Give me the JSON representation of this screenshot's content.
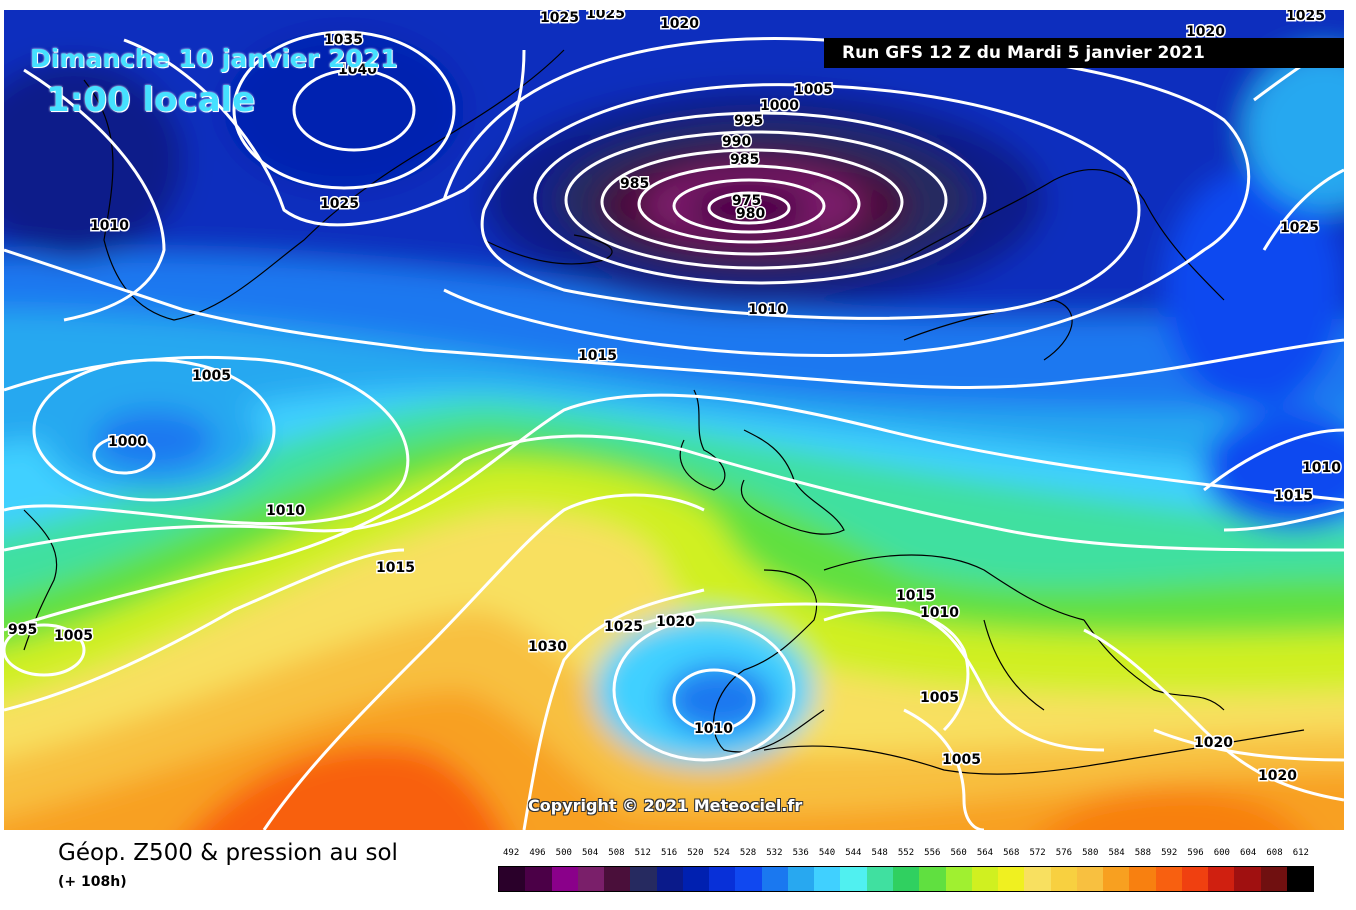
{
  "header": {
    "date_label": "Dimanche 10 janvier 2021",
    "time_label": "1:00 locale",
    "run_label": "Run GFS 12 Z du Mardi 5 janvier 2021"
  },
  "footer": {
    "title": "Géop. Z500 & pression au sol",
    "subtitle": "(+ 108h)",
    "copyright": "Copyright © 2021 Meteociel.fr"
  },
  "isobar_labels": {
    "l1035": "1035",
    "l1040": "1040",
    "l1025a": "1025",
    "l1025b": "1025",
    "l1020a": "1020",
    "l1005a": "1005",
    "l1000a": "1000",
    "l995a": "995",
    "l990": "990",
    "l985a": "985",
    "l985b": "985",
    "l975": "975",
    "l980": "980",
    "l1010a": "1010",
    "l1025c": "1025",
    "l1010b": "1010",
    "l1015a": "1015",
    "l1005b": "1005",
    "l1000b": "1000",
    "l1010c": "1010",
    "l1015b": "1015",
    "l1010d": "1010",
    "l1015c": "1015",
    "l995b": "995",
    "l1005c": "1005",
    "l1030": "1030",
    "l1025d": "1025",
    "l1020b": "1020",
    "l1010e": "1010",
    "l1015d": "1015",
    "l1010f": "1010",
    "l1005d": "1005",
    "l1005e": "1005",
    "l1020c": "1020",
    "l1020d": "1020",
    "l1025e": "1025",
    "l1025f": "1025",
    "l1020e": "1020"
  },
  "color_scale": {
    "values": [
      "492",
      "496",
      "500",
      "504",
      "508",
      "512",
      "516",
      "520",
      "524",
      "528",
      "532",
      "536",
      "540",
      "544",
      "548",
      "552",
      "556",
      "560",
      "564",
      "568",
      "572",
      "576",
      "580",
      "584",
      "588",
      "592",
      "596",
      "600",
      "604",
      "608",
      "612"
    ],
    "colors": [
      "#2a002a",
      "#4b0047",
      "#8a008a",
      "#7a1f6a",
      "#4a0f3a",
      "#262a60",
      "#0a1a8a",
      "#0020b0",
      "#0830d8",
      "#1048f0",
      "#1a78f0",
      "#28a8f0",
      "#40d0ff",
      "#50f0f0",
      "#40e0a0",
      "#30d060",
      "#60e040",
      "#a0f030",
      "#d0f020",
      "#f0f020",
      "#f8e060",
      "#f8d040",
      "#f8c040",
      "#f8a020",
      "#f88010",
      "#f86010",
      "#f04010",
      "#d02010",
      "#a01010",
      "#701010",
      "#000000"
    ]
  }
}
